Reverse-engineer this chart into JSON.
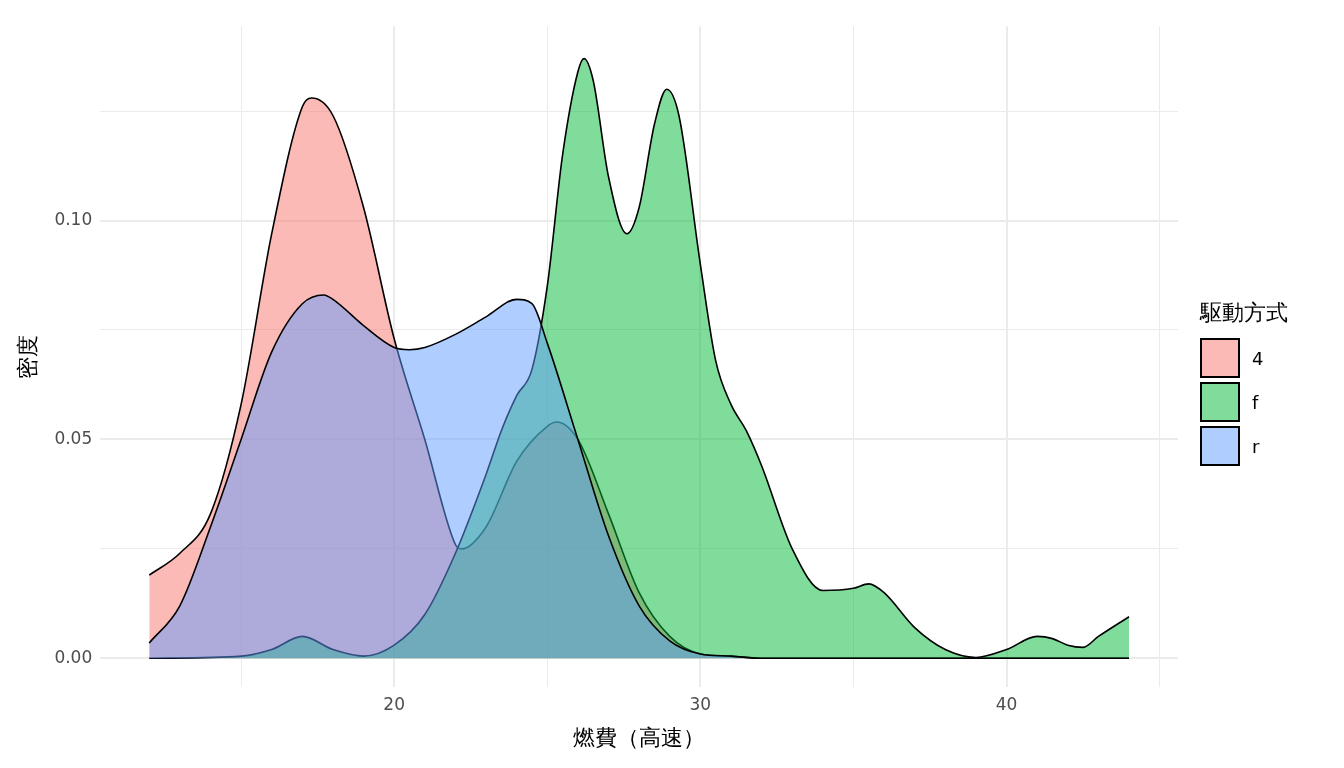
{
  "chart_data": {
    "type": "area",
    "xlabel": "燃費（高速）",
    "ylabel": "密度",
    "legend_title": "駆動方式",
    "legend": "right",
    "grid": true,
    "xlim": [
      10.4,
      45.6
    ],
    "ylim": [
      -0.0066,
      0.1444
    ],
    "xticks": [
      {
        "value": 15,
        "label": null
      },
      20,
      {
        "value": 25,
        "label": null
      },
      30,
      {
        "value": 35,
        "label": null
      },
      40,
      {
        "value": 45,
        "label": null
      }
    ],
    "yticks": [
      {
        "value": 0,
        "label": "0.00"
      },
      {
        "value": 0.025,
        "label": null
      },
      {
        "value": 0.05,
        "label": "0.05"
      },
      {
        "value": 0.075,
        "label": null
      },
      {
        "value": 0.1,
        "label": "0.10"
      },
      {
        "value": 0.125,
        "label": null
      }
    ],
    "series": [
      {
        "name": "4",
        "color": "#f8766d",
        "x": [
          12,
          13,
          14,
          15,
          16,
          17,
          17.3,
          18,
          19,
          20,
          21,
          22,
          22.2,
          23,
          24,
          25,
          25.3,
          26,
          27,
          28,
          29,
          30,
          31,
          32,
          44
        ],
        "values": [
          0.019,
          0.024,
          0.033,
          0.058,
          0.097,
          0.126,
          0.128,
          0.124,
          0.103,
          0.073,
          0.05,
          0.026,
          0.025,
          0.03,
          0.045,
          0.053,
          0.054,
          0.05,
          0.033,
          0.015,
          0.005,
          0.001,
          0.0005,
          0,
          0
        ]
      },
      {
        "name": "f",
        "color": "#00ba38",
        "x": [
          12,
          15,
          16,
          17,
          18,
          19,
          20,
          21,
          22,
          23,
          23.5,
          24,
          24.5,
          25,
          25.5,
          26,
          26.2,
          26.5,
          27,
          27.6,
          28,
          28.5,
          28.9,
          29.3,
          30,
          30.5,
          31,
          31.5,
          32,
          33,
          34,
          35,
          35.5,
          36,
          37,
          38,
          39,
          40,
          41,
          41.5,
          42,
          42.5,
          43,
          44
        ],
        "values": [
          0,
          0.0005,
          0.002,
          0.005,
          0.002,
          0.0005,
          0.003,
          0.01,
          0.024,
          0.042,
          0.052,
          0.06,
          0.066,
          0.085,
          0.115,
          0.134,
          0.137,
          0.132,
          0.11,
          0.097,
          0.103,
          0.122,
          0.13,
          0.124,
          0.09,
          0.068,
          0.058,
          0.052,
          0.044,
          0.025,
          0.0155,
          0.016,
          0.017,
          0.015,
          0.007,
          0.002,
          0.0002,
          0.002,
          0.005,
          0.0045,
          0.003,
          0.0025,
          0.005,
          0.0095
        ]
      },
      {
        "name": "r",
        "color": "#619cff",
        "x": [
          12,
          13,
          14,
          15,
          16,
          17,
          17.7,
          18,
          19,
          20,
          20.5,
          21,
          22,
          23,
          24,
          24.5,
          25,
          26,
          27,
          28,
          29,
          30,
          31,
          32,
          44
        ],
        "values": [
          0.0035,
          0.012,
          0.03,
          0.05,
          0.07,
          0.081,
          0.083,
          0.082,
          0.076,
          0.071,
          0.0705,
          0.071,
          0.074,
          0.078,
          0.082,
          0.081,
          0.072,
          0.05,
          0.028,
          0.012,
          0.004,
          0.001,
          0.0005,
          0,
          0
        ]
      }
    ]
  }
}
